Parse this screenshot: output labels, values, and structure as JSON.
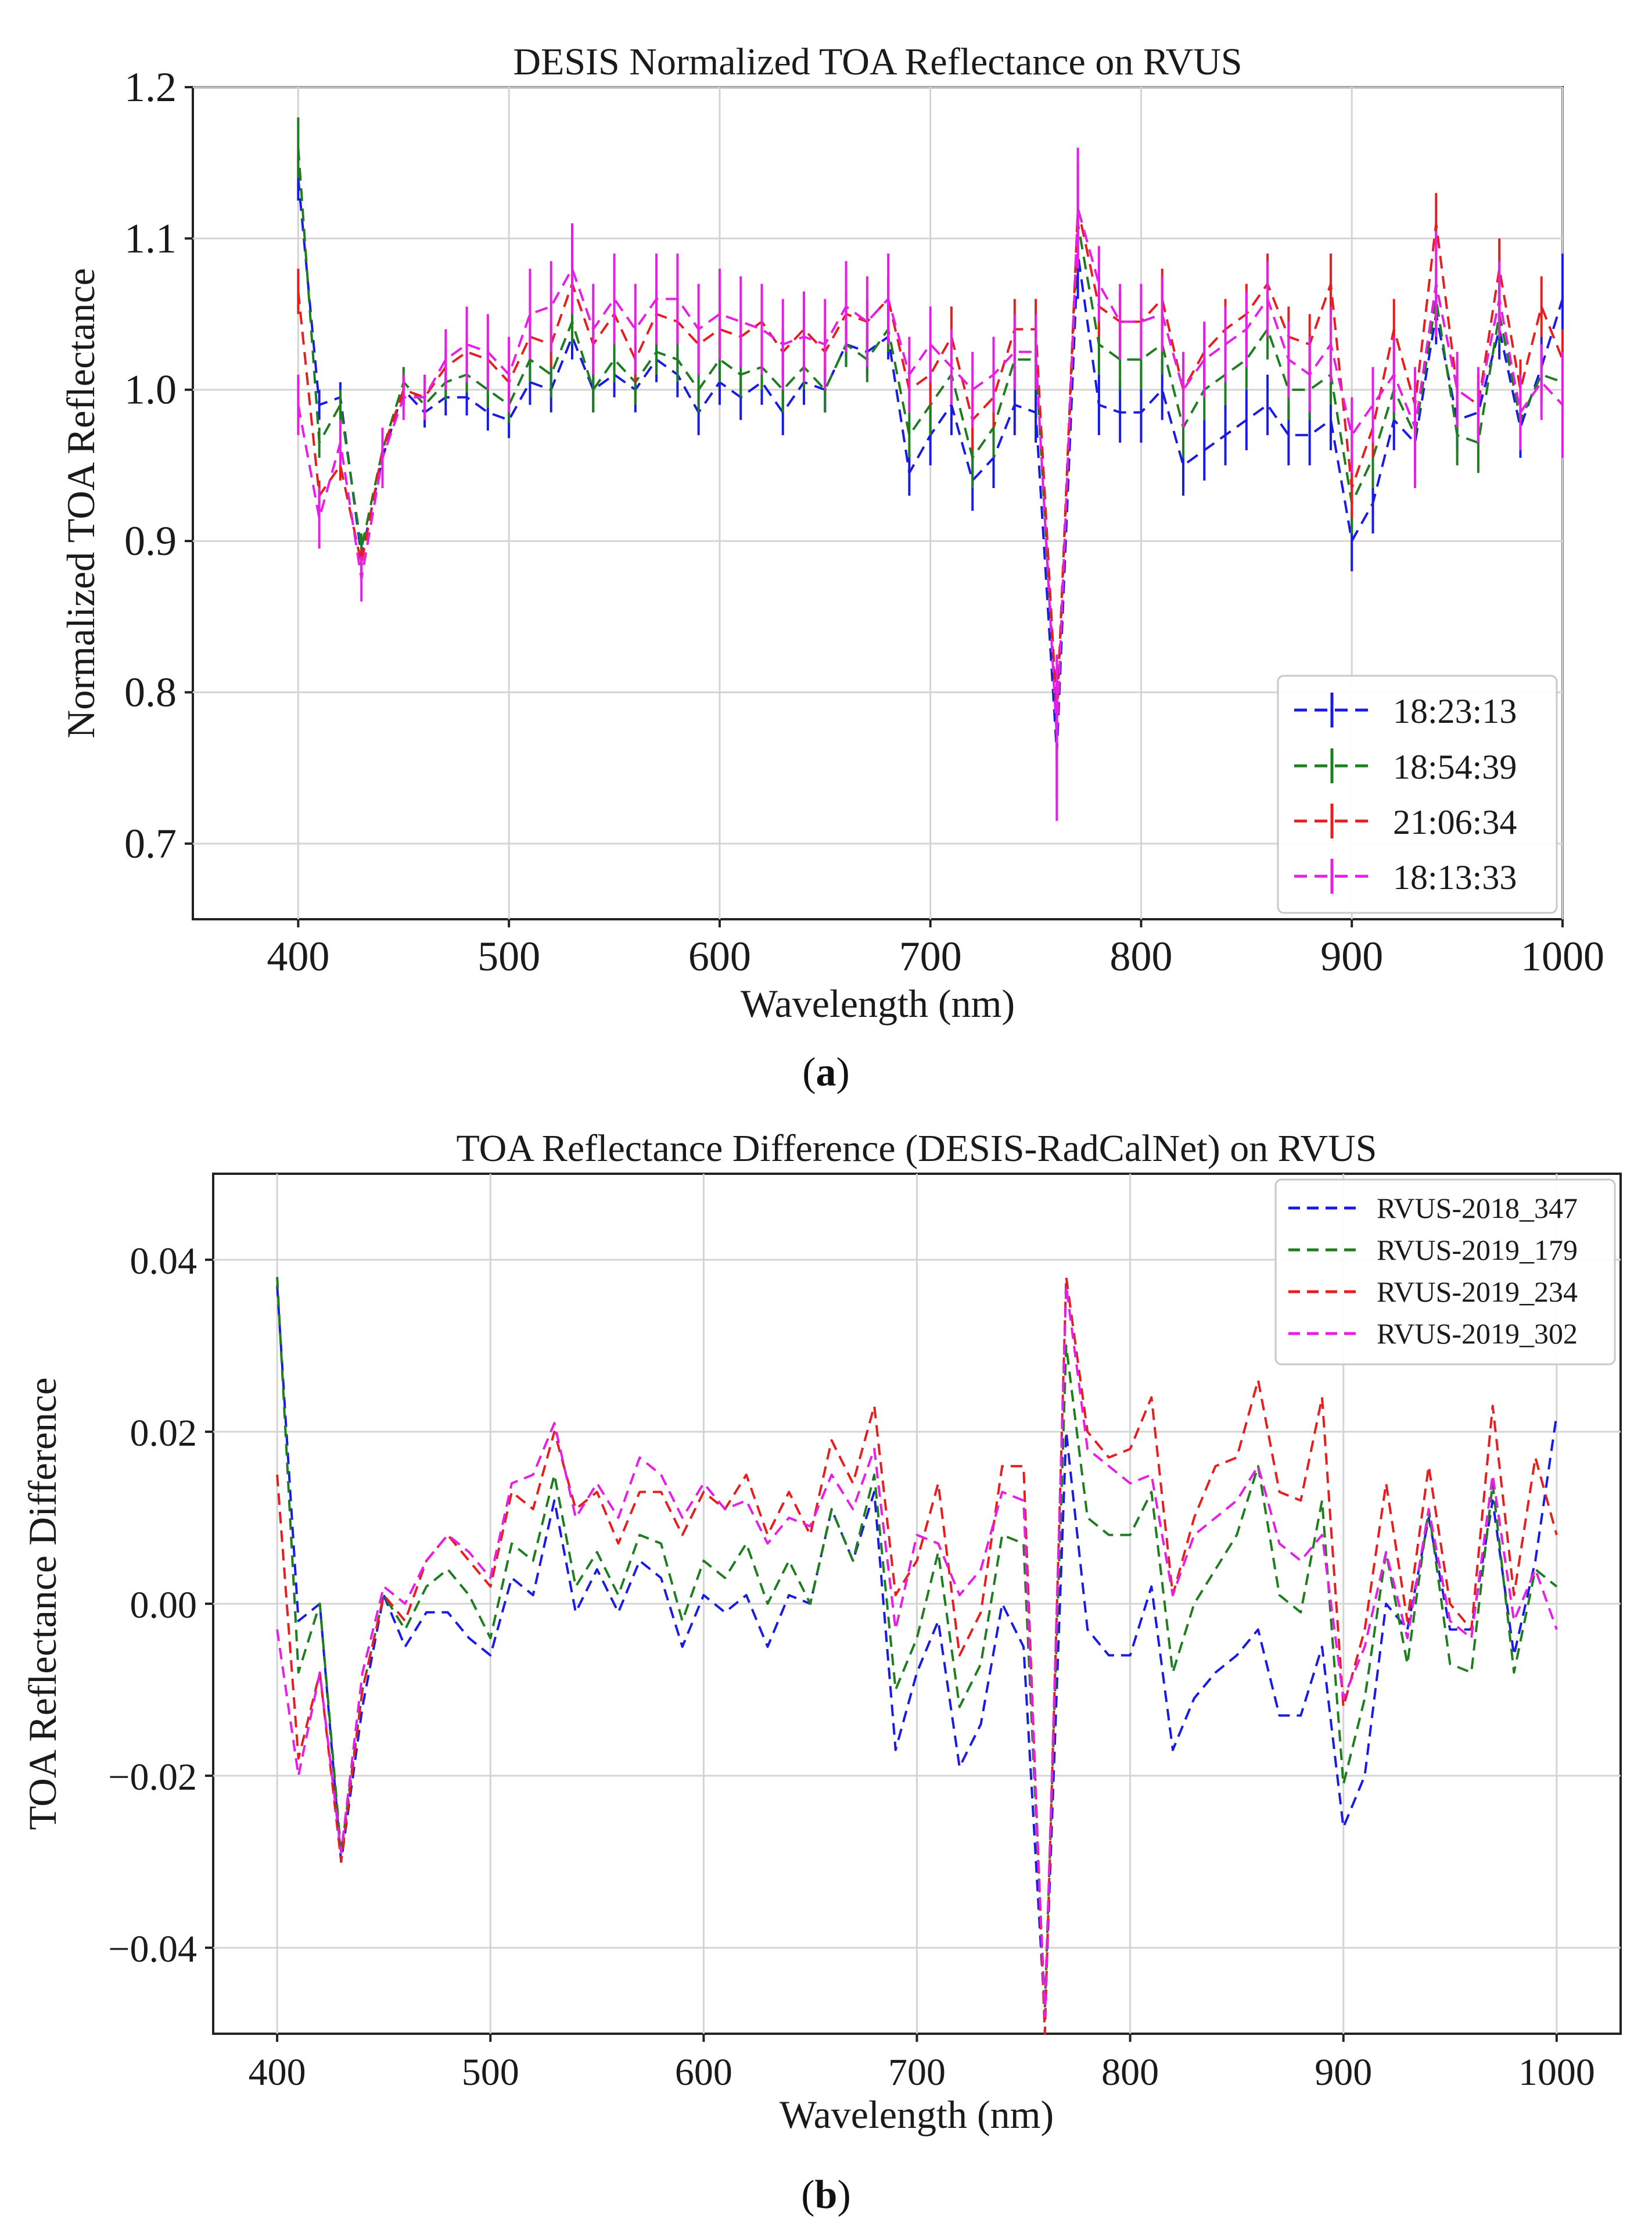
{
  "figure": {
    "caption_a": {
      "open": "(",
      "letter": "a",
      "close": ")"
    },
    "caption_b": {
      "open": "(",
      "letter": "b",
      "close": ")"
    }
  },
  "chart_data": [
    {
      "type": "line",
      "id": "a",
      "title": "DESIS Normalized TOA Reflectance on RVUS",
      "xlabel": "Wavelength (nm)",
      "ylabel": "Normalized TOA Reflectance",
      "xlim": [
        350,
        1000
      ],
      "ylim": [
        0.65,
        1.2
      ],
      "xticks": [
        400,
        500,
        600,
        700,
        800,
        900,
        1000
      ],
      "yticks": [
        0.7,
        0.8,
        0.9,
        1.0,
        1.1,
        1.2
      ],
      "ytick_labels": [
        "0.7",
        "0.8",
        "0.9",
        "1.0",
        "1.1",
        "1.2"
      ],
      "grid": true,
      "legend_position": "bottom-right",
      "error_bars": true,
      "x": [
        400,
        410,
        420,
        430,
        440,
        450,
        460,
        470,
        480,
        490,
        500,
        510,
        520,
        530,
        540,
        550,
        560,
        570,
        580,
        590,
        600,
        610,
        620,
        630,
        640,
        650,
        660,
        670,
        680,
        690,
        700,
        710,
        720,
        730,
        740,
        750,
        760,
        770,
        780,
        790,
        800,
        810,
        820,
        830,
        840,
        850,
        860,
        870,
        880,
        890,
        900,
        910,
        920,
        930,
        940,
        950,
        960,
        970,
        980,
        990,
        1000
      ],
      "series": [
        {
          "name": "18:23:13",
          "color": "#1a1ae6",
          "values": [
            1.14,
            0.99,
            0.995,
            0.89,
            0.955,
            1.0,
            0.985,
            0.995,
            0.995,
            0.985,
            0.98,
            1.005,
            1.0,
            1.035,
            1.0,
            1.01,
            1.0,
            1.02,
            1.01,
            0.985,
            1.005,
            0.995,
            1.005,
            0.985,
            1.005,
            1.0,
            1.03,
            1.025,
            1.035,
            0.945,
            0.97,
            0.99,
            0.94,
            0.955,
            0.99,
            0.985,
            0.76,
            1.09,
            0.99,
            0.985,
            0.985,
            1.0,
            0.95,
            0.96,
            0.97,
            0.98,
            0.99,
            0.97,
            0.97,
            0.98,
            0.9,
            0.925,
            0.98,
            0.965,
            1.05,
            0.98,
            0.985,
            1.04,
            0.975,
            1.015,
            1.06
          ],
          "errors": [
            0.015,
            0.01,
            0.01,
            0.01,
            0.01,
            0.01,
            0.01,
            0.012,
            0.012,
            0.012,
            0.012,
            0.015,
            0.015,
            0.015,
            0.015,
            0.015,
            0.015,
            0.015,
            0.015,
            0.015,
            0.015,
            0.015,
            0.015,
            0.015,
            0.015,
            0.015,
            0.015,
            0.015,
            0.015,
            0.015,
            0.02,
            0.02,
            0.02,
            0.02,
            0.02,
            0.02,
            0.03,
            0.03,
            0.02,
            0.02,
            0.02,
            0.02,
            0.02,
            0.02,
            0.02,
            0.02,
            0.02,
            0.02,
            0.02,
            0.02,
            0.02,
            0.02,
            0.02,
            0.02,
            0.02,
            0.02,
            0.02,
            0.02,
            0.02,
            0.02,
            0.03
          ]
        },
        {
          "name": "18:54:39",
          "color": "#1e7d1e",
          "values": [
            1.16,
            0.965,
            0.99,
            0.895,
            0.96,
            1.005,
            0.99,
            1.005,
            1.01,
            1.0,
            0.99,
            1.02,
            1.01,
            1.045,
            1.0,
            1.02,
            1.005,
            1.025,
            1.02,
            1.0,
            1.02,
            1.01,
            1.015,
            1.0,
            1.015,
            1.0,
            1.03,
            1.02,
            1.04,
            0.97,
            0.99,
            1.01,
            0.955,
            0.975,
            1.02,
            1.02,
            0.78,
            1.11,
            1.03,
            1.02,
            1.02,
            1.03,
            0.975,
            1.0,
            1.01,
            1.02,
            1.04,
            1.0,
            1.0,
            1.01,
            0.925,
            0.955,
            1.0,
            0.97,
            1.06,
            0.97,
            0.965,
            1.05,
            0.98,
            1.01,
            1.005
          ],
          "errors": [
            0.02,
            0.01,
            0.01,
            0.01,
            0.01,
            0.01,
            0.01,
            0.012,
            0.012,
            0.012,
            0.012,
            0.015,
            0.015,
            0.015,
            0.015,
            0.015,
            0.015,
            0.015,
            0.015,
            0.015,
            0.015,
            0.015,
            0.015,
            0.015,
            0.015,
            0.015,
            0.015,
            0.015,
            0.015,
            0.015,
            0.02,
            0.02,
            0.02,
            0.02,
            0.02,
            0.02,
            0.03,
            0.03,
            0.02,
            0.02,
            0.02,
            0.02,
            0.02,
            0.02,
            0.02,
            0.02,
            0.02,
            0.02,
            0.02,
            0.02,
            0.02,
            0.02,
            0.02,
            0.02,
            0.02,
            0.02,
            0.02,
            0.02,
            0.02,
            0.02,
            0.02
          ]
        },
        {
          "name": "21:06:34",
          "color": "#e61e1e",
          "values": [
            1.065,
            0.93,
            0.95,
            0.885,
            0.96,
            1.0,
            0.995,
            1.015,
            1.025,
            1.02,
            1.005,
            1.035,
            1.03,
            1.07,
            1.03,
            1.05,
            1.02,
            1.05,
            1.045,
            1.03,
            1.04,
            1.035,
            1.045,
            1.025,
            1.04,
            1.025,
            1.05,
            1.045,
            1.06,
            1.0,
            1.01,
            1.035,
            0.98,
            0.995,
            1.04,
            1.04,
            0.785,
            1.12,
            1.055,
            1.045,
            1.045,
            1.06,
            1.0,
            1.025,
            1.04,
            1.05,
            1.07,
            1.035,
            1.03,
            1.07,
            0.935,
            0.975,
            1.04,
            0.99,
            1.11,
            1.0,
            0.99,
            1.08,
            1.0,
            1.055,
            1.02
          ],
          "errors": [
            0.015,
            0.01,
            0.01,
            0.01,
            0.01,
            0.01,
            0.01,
            0.012,
            0.012,
            0.012,
            0.012,
            0.015,
            0.015,
            0.015,
            0.015,
            0.015,
            0.015,
            0.015,
            0.015,
            0.015,
            0.015,
            0.015,
            0.015,
            0.015,
            0.015,
            0.015,
            0.015,
            0.015,
            0.015,
            0.015,
            0.02,
            0.02,
            0.02,
            0.02,
            0.02,
            0.02,
            0.03,
            0.03,
            0.02,
            0.02,
            0.02,
            0.02,
            0.02,
            0.02,
            0.02,
            0.02,
            0.02,
            0.02,
            0.02,
            0.02,
            0.02,
            0.02,
            0.02,
            0.02,
            0.02,
            0.02,
            0.02,
            0.02,
            0.02,
            0.02,
            0.02
          ]
        },
        {
          "name": "18:13:33",
          "color": "#e61ee6",
          "values": [
            0.99,
            0.915,
            0.965,
            0.875,
            0.955,
            0.995,
            0.995,
            1.02,
            1.03,
            1.025,
            1.01,
            1.05,
            1.055,
            1.08,
            1.04,
            1.06,
            1.04,
            1.06,
            1.06,
            1.04,
            1.05,
            1.045,
            1.04,
            1.03,
            1.035,
            1.03,
            1.055,
            1.045,
            1.06,
            1.01,
            1.03,
            1.015,
            1.0,
            1.01,
            1.025,
            1.025,
            0.77,
            1.12,
            1.07,
            1.045,
            1.045,
            1.05,
            1.0,
            1.02,
            1.03,
            1.04,
            1.06,
            1.02,
            1.01,
            1.03,
            0.97,
            0.99,
            1.01,
            0.975,
            1.07,
            1.0,
            0.99,
            1.06,
            0.985,
            1.005,
            0.99
          ],
          "errors": [
            0.02,
            0.02,
            0.015,
            0.015,
            0.02,
            0.015,
            0.015,
            0.02,
            0.025,
            0.025,
            0.025,
            0.03,
            0.03,
            0.03,
            0.03,
            0.03,
            0.03,
            0.03,
            0.03,
            0.03,
            0.03,
            0.03,
            0.03,
            0.03,
            0.03,
            0.03,
            0.03,
            0.03,
            0.03,
            0.025,
            0.025,
            0.025,
            0.025,
            0.025,
            0.025,
            0.025,
            0.055,
            0.04,
            0.025,
            0.025,
            0.025,
            0.025,
            0.025,
            0.025,
            0.025,
            0.025,
            0.025,
            0.025,
            0.025,
            0.025,
            0.025,
            0.025,
            0.025,
            0.04,
            0.035,
            0.025,
            0.025,
            0.025,
            0.025,
            0.025,
            0.035
          ]
        }
      ]
    },
    {
      "type": "line",
      "id": "b",
      "title": "TOA Reflectance Difference (DESIS-RadCalNet) on RVUS",
      "xlabel": "Wavelength (nm)",
      "ylabel": "TOA Reflectance Difference",
      "xlim": [
        370,
        1030
      ],
      "ylim": [
        -0.05,
        0.05
      ],
      "xticks": [
        400,
        500,
        600,
        700,
        800,
        900,
        1000
      ],
      "yticks": [
        -0.04,
        -0.02,
        0.0,
        0.02,
        0.04
      ],
      "ytick_labels": [
        "−0.04",
        "−0.02",
        "0.00",
        "0.02",
        "0.04"
      ],
      "grid": true,
      "legend_position": "top-right",
      "error_bars": false,
      "x": [
        400,
        410,
        420,
        430,
        440,
        450,
        460,
        470,
        480,
        490,
        500,
        510,
        520,
        530,
        540,
        550,
        560,
        570,
        580,
        590,
        600,
        610,
        620,
        630,
        640,
        650,
        660,
        670,
        680,
        690,
        700,
        710,
        720,
        730,
        740,
        750,
        760,
        770,
        780,
        790,
        800,
        810,
        820,
        830,
        840,
        850,
        860,
        870,
        880,
        890,
        900,
        910,
        920,
        930,
        940,
        950,
        960,
        970,
        980,
        990,
        1000
      ],
      "series": [
        {
          "name": "RVUS-2018_347",
          "color": "#1a1ae6",
          "values": [
            0.037,
            -0.002,
            0.0,
            -0.03,
            -0.012,
            0.001,
            -0.005,
            -0.001,
            -0.001,
            -0.004,
            -0.006,
            0.003,
            0.001,
            0.012,
            -0.001,
            0.004,
            -0.001,
            0.005,
            0.003,
            -0.005,
            0.001,
            -0.001,
            0.001,
            -0.005,
            0.001,
            0.0,
            0.011,
            0.005,
            0.013,
            -0.017,
            -0.008,
            -0.002,
            -0.019,
            -0.014,
            0.0,
            -0.005,
            -0.048,
            0.02,
            -0.003,
            -0.006,
            -0.006,
            0.002,
            -0.017,
            -0.011,
            -0.008,
            -0.006,
            -0.003,
            -0.013,
            -0.013,
            -0.005,
            -0.026,
            -0.02,
            0.0,
            -0.003,
            0.01,
            -0.003,
            -0.003,
            0.012,
            -0.006,
            0.005,
            0.022
          ]
        },
        {
          "name": "RVUS-2019_179",
          "color": "#1e7d1e",
          "values": [
            0.038,
            -0.008,
            0.0,
            -0.029,
            -0.01,
            0.001,
            -0.003,
            0.002,
            0.004,
            0.001,
            -0.004,
            0.007,
            0.005,
            0.015,
            0.002,
            0.006,
            0.001,
            0.008,
            0.007,
            -0.002,
            0.005,
            0.003,
            0.007,
            0.0,
            0.005,
            0.0,
            0.011,
            0.005,
            0.015,
            -0.01,
            -0.004,
            0.006,
            -0.012,
            -0.007,
            0.008,
            0.007,
            -0.047,
            0.03,
            0.01,
            0.008,
            0.008,
            0.013,
            -0.008,
            0.0,
            0.004,
            0.008,
            0.016,
            0.001,
            -0.001,
            0.012,
            -0.021,
            -0.011,
            0.006,
            -0.007,
            0.011,
            -0.007,
            -0.008,
            0.014,
            -0.008,
            0.004,
            0.002
          ]
        },
        {
          "name": "RVUS-2019_234",
          "color": "#e61e1e",
          "values": [
            0.015,
            -0.018,
            -0.008,
            -0.03,
            -0.01,
            0.001,
            -0.002,
            0.005,
            0.008,
            0.005,
            0.002,
            0.013,
            0.011,
            0.02,
            0.011,
            0.013,
            0.007,
            0.013,
            0.013,
            0.008,
            0.013,
            0.011,
            0.015,
            0.008,
            0.013,
            0.008,
            0.019,
            0.014,
            0.023,
            0.001,
            0.005,
            0.014,
            -0.006,
            -0.001,
            0.016,
            0.016,
            -0.05,
            0.038,
            0.02,
            0.017,
            0.018,
            0.024,
            0.001,
            0.01,
            0.016,
            0.017,
            0.026,
            0.013,
            0.012,
            0.024,
            -0.012,
            -0.003,
            0.014,
            -0.002,
            0.016,
            0.0,
            -0.003,
            0.023,
            0.001,
            0.017,
            0.008
          ]
        },
        {
          "name": "RVUS-2019_302",
          "color": "#e61ee6",
          "values": [
            -0.003,
            -0.02,
            -0.008,
            -0.029,
            -0.008,
            0.002,
            0.0,
            0.005,
            0.008,
            0.006,
            0.003,
            0.014,
            0.015,
            0.021,
            0.01,
            0.014,
            0.01,
            0.017,
            0.015,
            0.01,
            0.014,
            0.011,
            0.012,
            0.007,
            0.01,
            0.009,
            0.015,
            0.011,
            0.018,
            -0.003,
            0.008,
            0.007,
            0.001,
            0.004,
            0.013,
            0.012,
            -0.048,
            0.037,
            0.018,
            0.016,
            0.014,
            0.015,
            0.001,
            0.008,
            0.01,
            0.012,
            0.016,
            0.007,
            0.005,
            0.008,
            -0.011,
            -0.005,
            0.006,
            -0.004,
            0.011,
            -0.002,
            -0.004,
            0.015,
            -0.002,
            0.004,
            -0.003
          ]
        }
      ]
    }
  ]
}
